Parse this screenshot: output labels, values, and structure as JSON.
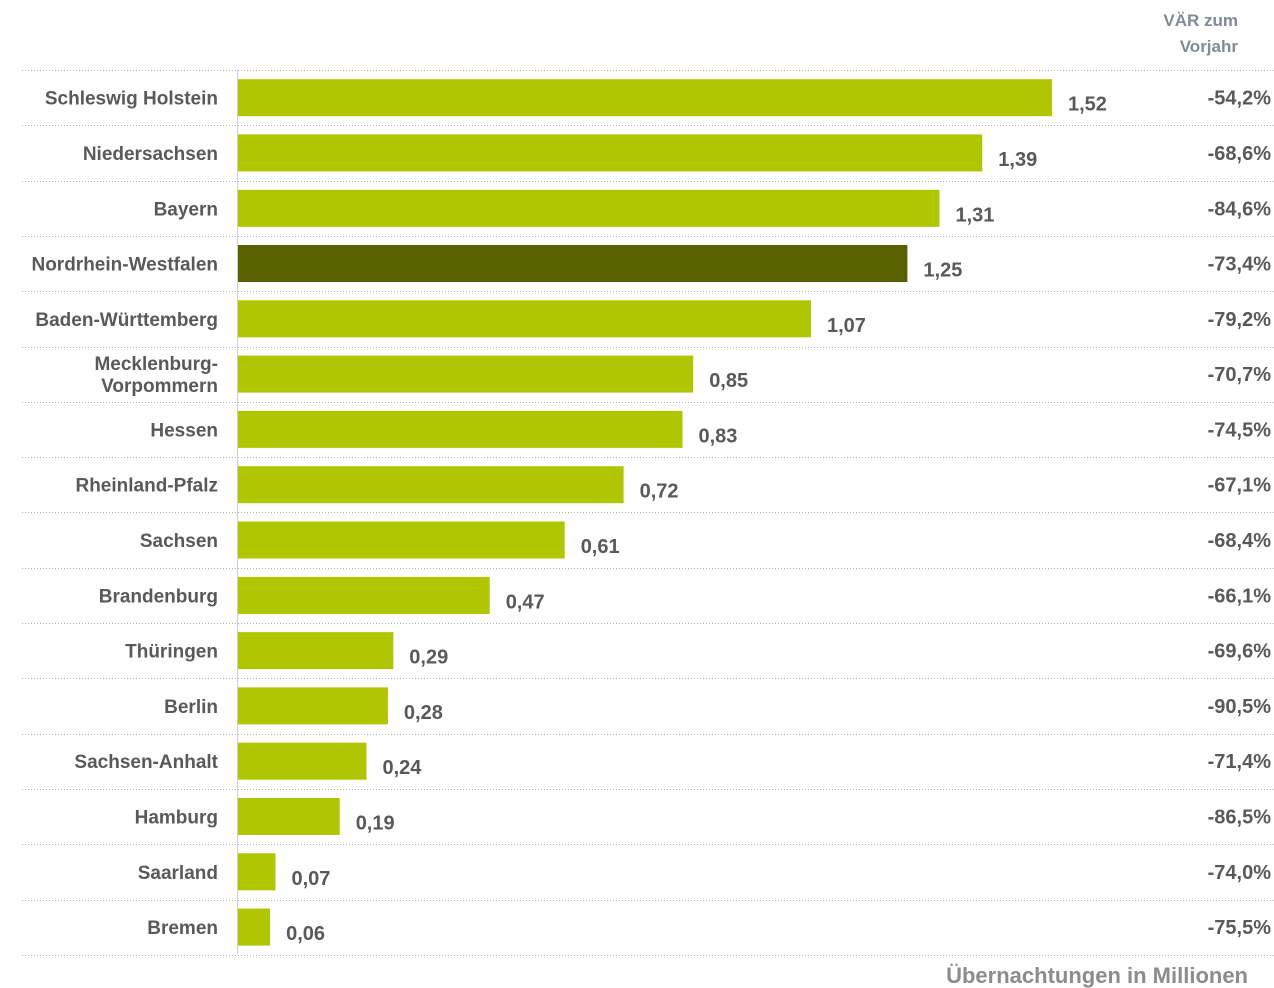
{
  "header": {
    "change_column_line1": "VÄR zum",
    "change_column_line2": "Vorjahr"
  },
  "footer": {
    "unit_label": "Übernachtungen in Millionen"
  },
  "colors": {
    "bar": "#afc600",
    "bar_highlight": "#5a6200",
    "text": "#595959",
    "header_text": "#7f8b99",
    "footer_text": "#8c8c8c"
  },
  "chart_data": {
    "type": "bar",
    "orientation": "horizontal",
    "categories": [
      "Schleswig Holstein",
      "Niedersachsen",
      "Bayern",
      "Nordrhein-Westfalen",
      "Baden-Württemberg",
      "Mecklenburg-Vorpommern",
      "Hessen",
      "Rheinland-Pfalz",
      "Sachsen",
      "Brandenburg",
      "Thüringen",
      "Berlin",
      "Sachsen-Anhalt",
      "Hamburg",
      "Saarland",
      "Bremen"
    ],
    "category_display_lines": [
      [
        "Schleswig Holstein"
      ],
      [
        "Niedersachsen"
      ],
      [
        "Bayern"
      ],
      [
        "Nordrhein-Westfalen"
      ],
      [
        "Baden-Württemberg"
      ],
      [
        "Mecklenburg-",
        "Vorpommern"
      ],
      [
        "Hessen"
      ],
      [
        "Rheinland-Pfalz"
      ],
      [
        "Sachsen"
      ],
      [
        "Brandenburg"
      ],
      [
        "Thüringen"
      ],
      [
        "Berlin"
      ],
      [
        "Sachsen-Anhalt"
      ],
      [
        "Hamburg"
      ],
      [
        "Saarland"
      ],
      [
        "Bremen"
      ]
    ],
    "values": [
      1.52,
      1.39,
      1.31,
      1.25,
      1.07,
      0.85,
      0.83,
      0.72,
      0.61,
      0.47,
      0.29,
      0.28,
      0.24,
      0.19,
      0.07,
      0.06
    ],
    "value_labels": [
      "1,52",
      "1,39",
      "1,31",
      "1,25",
      "1,07",
      "0,85",
      "0,83",
      "0,72",
      "0,61",
      "0,47",
      "0,29",
      "0,28",
      "0,24",
      "0,19",
      "0,07",
      "0,06"
    ],
    "change_labels": [
      "-54,2%",
      "-68,6%",
      "-84,6%",
      "-73,4%",
      "-79,2%",
      "-70,7%",
      "-74,5%",
      "-67,1%",
      "-68,4%",
      "-66,1%",
      "-69,6%",
      "-90,5%",
      "-71,4%",
      "-86,5%",
      "-74,0%",
      "-75,5%"
    ],
    "highlighted_category": "Nordrhein-Westfalen",
    "xlim": [
      0,
      1.6
    ],
    "xlabel": "Übernachtungen in Millionen",
    "ylabel": "",
    "title": "",
    "grid": false,
    "legend": "none"
  }
}
